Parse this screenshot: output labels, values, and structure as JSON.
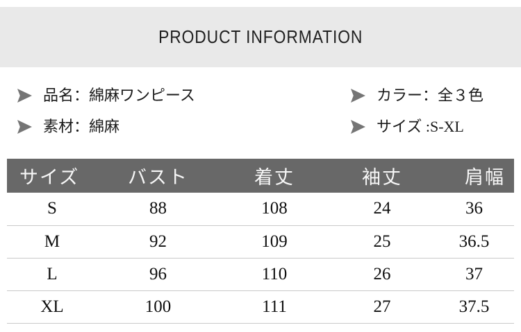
{
  "header": {
    "title": "PRODUCT INFORMATION"
  },
  "info": {
    "left": [
      {
        "label": "品名：綿麻ワンピース"
      },
      {
        "label": "素材：綿麻"
      }
    ],
    "right": [
      {
        "label": "カラー：全３色"
      },
      {
        "label": "サイズ :S-XL"
      }
    ]
  },
  "size_table": {
    "columns": [
      "サイズ",
      "バスト",
      "着丈",
      "袖丈",
      "肩幅"
    ],
    "rows": [
      [
        "S",
        "88",
        "108",
        "24",
        "36"
      ],
      [
        "M",
        "92",
        "109",
        "25",
        "36.5"
      ],
      [
        "L",
        "96",
        "110",
        "26",
        "37"
      ],
      [
        "XL",
        "100",
        "111",
        "27",
        "37.5"
      ]
    ]
  },
  "colors": {
    "banner_background": "#e9e9e9",
    "banner_text": "#1f1f1f",
    "table_header_background": "#686868",
    "table_header_text": "#f7f7f7",
    "row_divider": "#c9c9c9",
    "arrow": "#757575",
    "body_text": "#1a1a1a"
  }
}
